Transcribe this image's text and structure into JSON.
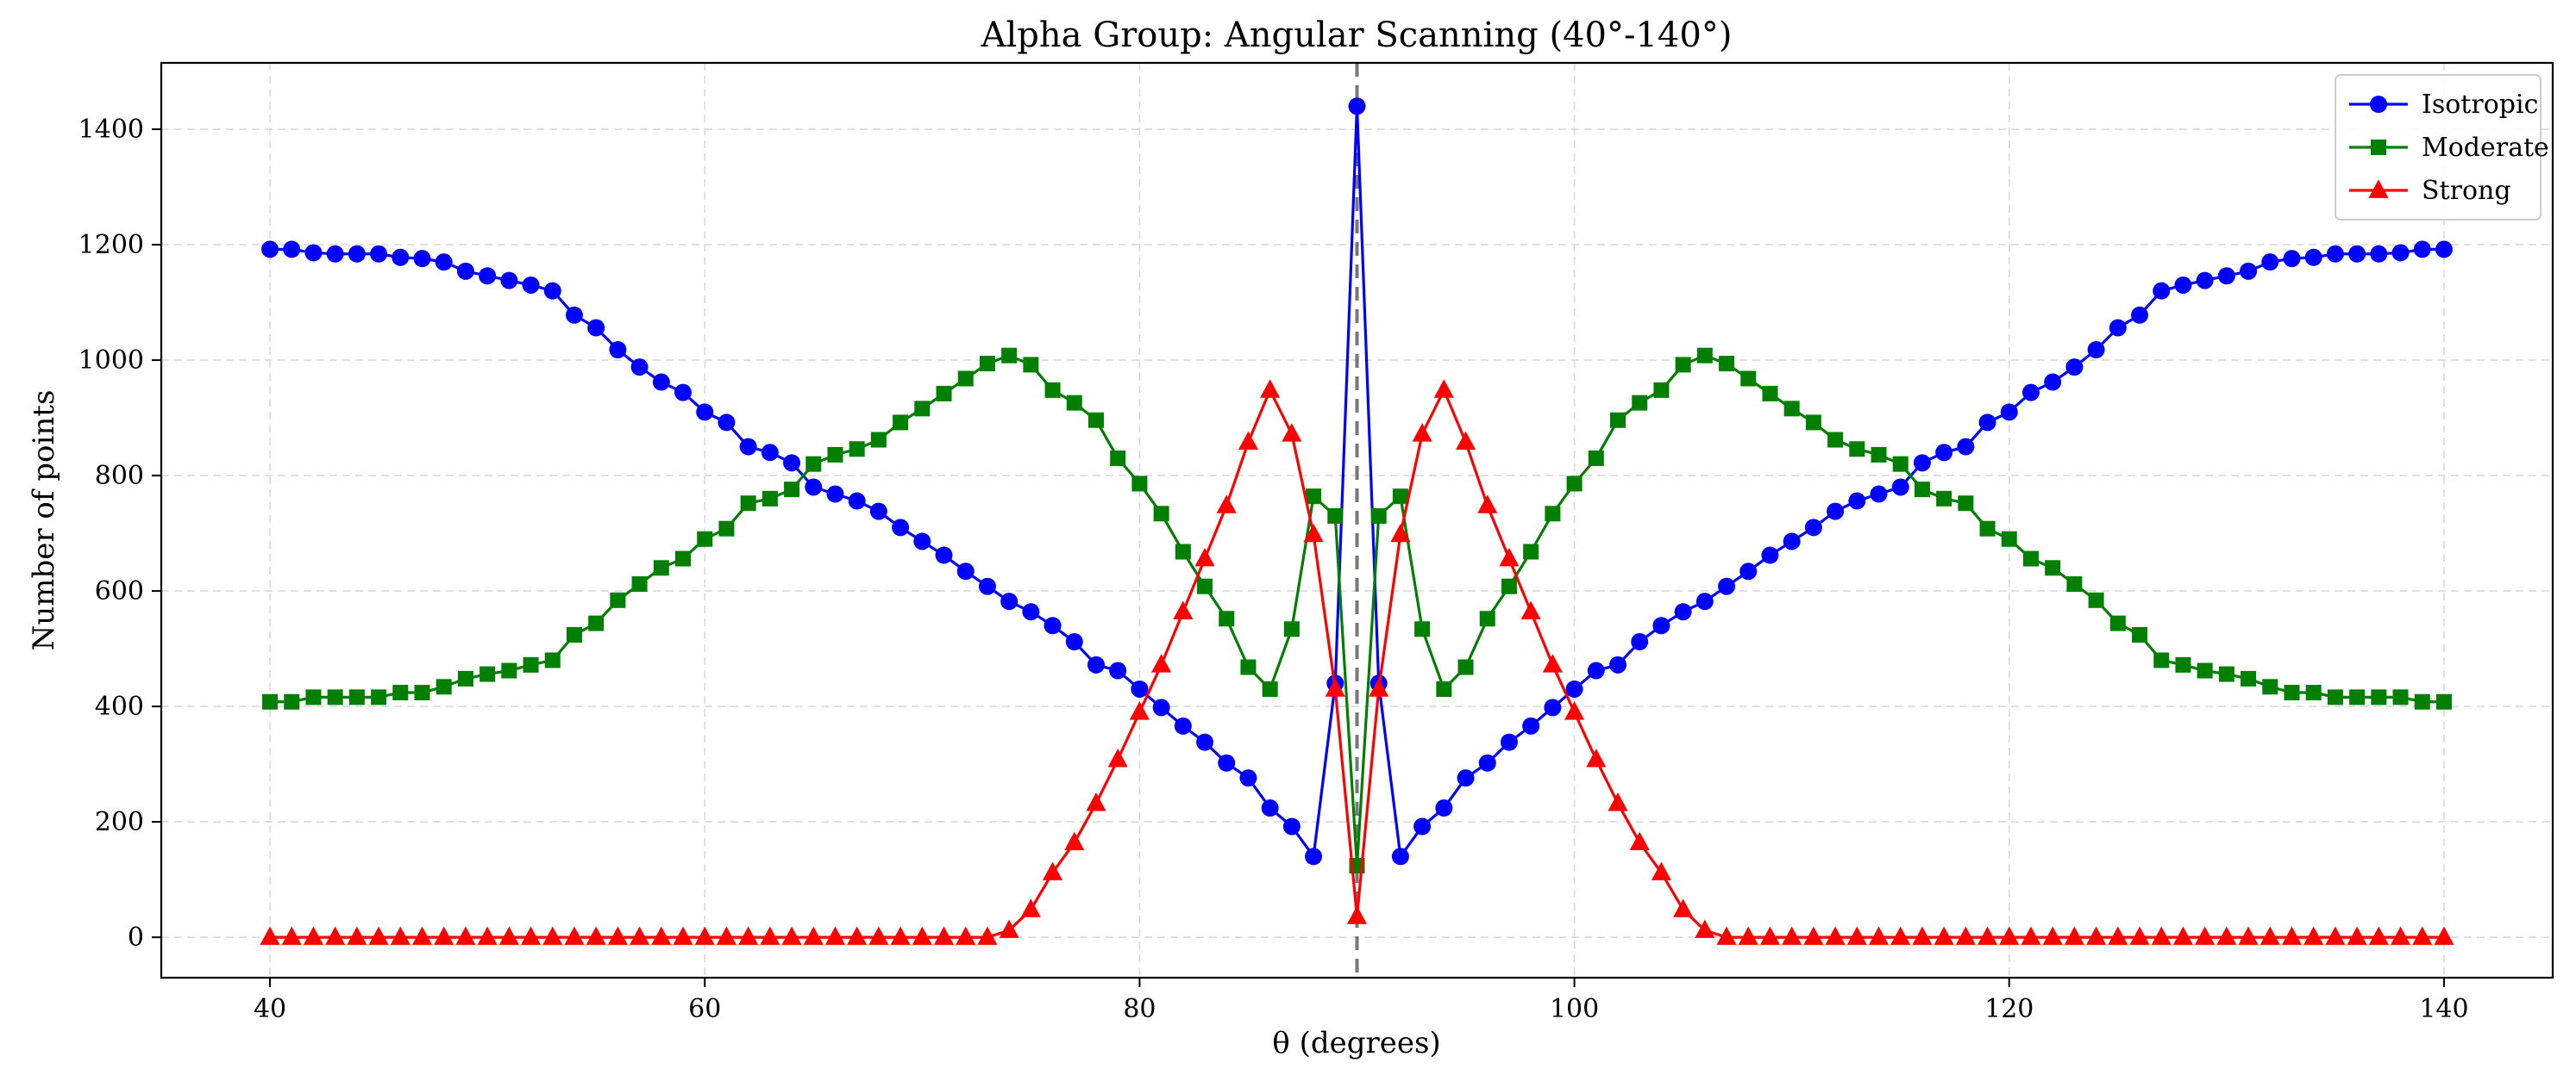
{
  "chart_data": {
    "type": "line",
    "title": "Alpha Group: Angular Scanning (40°-140°)",
    "xlabel": "θ (degrees)",
    "ylabel": "Number of points",
    "xlim": [
      35,
      145
    ],
    "ylim": [
      -70,
      1515
    ],
    "xticks": [
      40,
      60,
      80,
      100,
      120,
      140
    ],
    "yticks": [
      0,
      200,
      400,
      600,
      800,
      1000,
      1200,
      1400
    ],
    "grid": true,
    "legend_position": "top-right",
    "reference_line": {
      "x": 90,
      "style": "dashed",
      "color": "#777777"
    },
    "x": [
      40,
      41,
      42,
      43,
      44,
      45,
      46,
      47,
      48,
      49,
      50,
      51,
      52,
      53,
      54,
      55,
      56,
      57,
      58,
      59,
      60,
      61,
      62,
      63,
      64,
      65,
      66,
      67,
      68,
      69,
      70,
      71,
      72,
      73,
      74,
      75,
      76,
      77,
      78,
      79,
      80,
      81,
      82,
      83,
      84,
      85,
      86,
      87,
      88,
      89,
      90,
      91,
      92,
      93,
      94,
      95,
      96,
      97,
      98,
      99,
      100,
      101,
      102,
      103,
      104,
      105,
      106,
      107,
      108,
      109,
      110,
      111,
      112,
      113,
      114,
      115,
      116,
      117,
      118,
      119,
      120,
      121,
      122,
      123,
      124,
      125,
      126,
      127,
      128,
      129,
      130,
      131,
      132,
      133,
      134,
      135,
      136,
      137,
      138,
      139,
      140
    ],
    "series": [
      {
        "name": "Isotropic",
        "color": "#0000ff",
        "marker": "circle",
        "values": [
          1192,
          1192,
          1186,
          1184,
          1184,
          1184,
          1178,
          1176,
          1170,
          1154,
          1146,
          1138,
          1130,
          1120,
          1078,
          1056,
          1018,
          988,
          962,
          944,
          910,
          892,
          850,
          840,
          822,
          780,
          768,
          756,
          738,
          710,
          686,
          662,
          634,
          608,
          582,
          564,
          540,
          512,
          472,
          462,
          430,
          398,
          366,
          338,
          302,
          276,
          224,
          192,
          140,
          440,
          1440,
          440,
          140,
          192,
          224,
          276,
          302,
          338,
          366,
          398,
          430,
          462,
          472,
          512,
          540,
          564,
          582,
          608,
          634,
          662,
          686,
          710,
          738,
          756,
          768,
          780,
          822,
          840,
          850,
          892,
          910,
          944,
          962,
          988,
          1018,
          1056,
          1078,
          1120,
          1130,
          1138,
          1146,
          1154,
          1170,
          1176,
          1178,
          1184,
          1184,
          1184,
          1186,
          1192,
          1192
        ]
      },
      {
        "name": "Moderate",
        "color": "#007f00",
        "marker": "square",
        "values": [
          408,
          408,
          416,
          416,
          416,
          416,
          424,
          424,
          434,
          448,
          456,
          462,
          472,
          480,
          524,
          544,
          584,
          612,
          640,
          656,
          690,
          708,
          752,
          760,
          776,
          820,
          836,
          846,
          862,
          892,
          916,
          942,
          968,
          994,
          1008,
          992,
          948,
          926,
          896,
          830,
          786,
          734,
          668,
          608,
          552,
          468,
          430,
          534,
          764,
          730,
          124,
          730,
          764,
          534,
          430,
          468,
          552,
          608,
          668,
          734,
          786,
          830,
          896,
          926,
          948,
          992,
          1008,
          994,
          968,
          942,
          916,
          892,
          862,
          846,
          836,
          820,
          776,
          760,
          752,
          708,
          690,
          656,
          640,
          612,
          584,
          544,
          524,
          480,
          472,
          462,
          456,
          448,
          434,
          424,
          424,
          416,
          416,
          416,
          416,
          408,
          408
        ]
      },
      {
        "name": "Strong",
        "color": "#ff0000",
        "marker": "triangle",
        "values": [
          0,
          0,
          0,
          0,
          0,
          0,
          0,
          0,
          0,
          0,
          0,
          0,
          0,
          0,
          0,
          0,
          0,
          0,
          0,
          0,
          0,
          0,
          0,
          0,
          0,
          0,
          0,
          0,
          0,
          0,
          0,
          0,
          0,
          0,
          12,
          48,
          112,
          164,
          232,
          308,
          390,
          472,
          564,
          656,
          748,
          858,
          948,
          872,
          698,
          430,
          36,
          430,
          698,
          872,
          948,
          858,
          748,
          656,
          564,
          472,
          390,
          308,
          232,
          164,
          112,
          48,
          12,
          0,
          0,
          0,
          0,
          0,
          0,
          0,
          0,
          0,
          0,
          0,
          0,
          0,
          0,
          0,
          0,
          0,
          0,
          0,
          0,
          0,
          0,
          0,
          0,
          0,
          0,
          0,
          0,
          0,
          0,
          0,
          0,
          0,
          0
        ]
      }
    ]
  }
}
